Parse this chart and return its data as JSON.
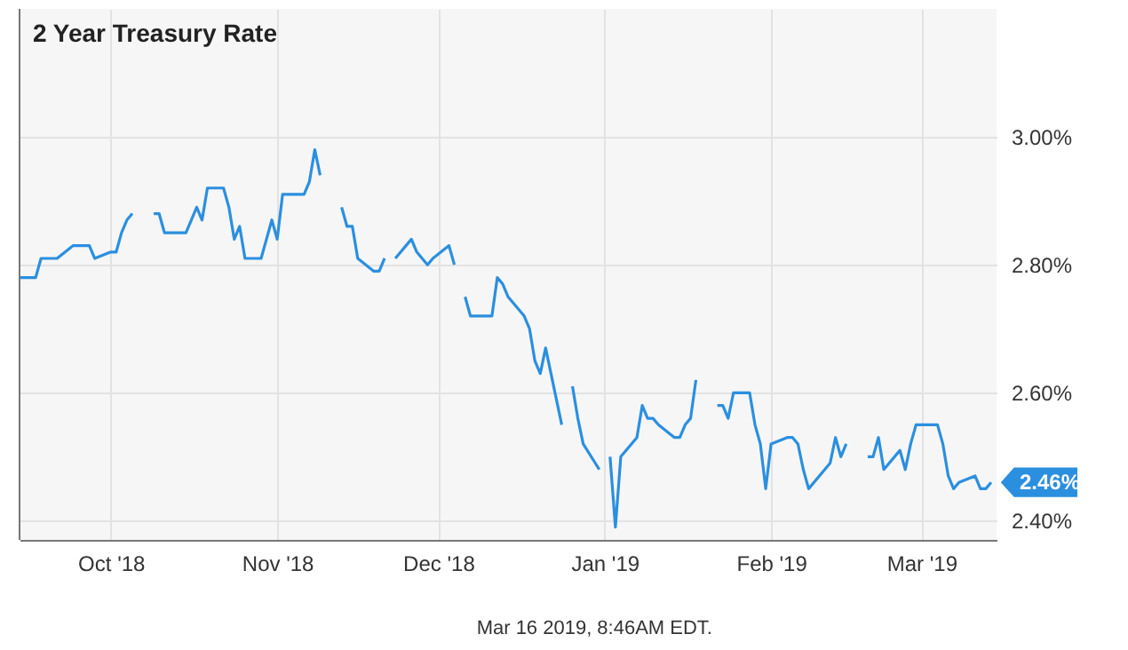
{
  "chart_data": {
    "type": "line",
    "title": "2 Year Treasury Rate",
    "x": [
      "2018-09-14",
      "2018-09-17",
      "2018-09-18",
      "2018-09-19",
      "2018-09-20",
      "2018-09-21",
      "2018-09-24",
      "2018-09-25",
      "2018-09-26",
      "2018-09-27",
      "2018-09-28",
      "2018-10-01",
      "2018-10-02",
      "2018-10-03",
      "2018-10-04",
      "2018-10-05",
      "2018-10-08",
      "2018-10-09",
      "2018-10-10",
      "2018-10-11",
      "2018-10-12",
      "2018-10-15",
      "2018-10-16",
      "2018-10-17",
      "2018-10-18",
      "2018-10-19",
      "2018-10-22",
      "2018-10-23",
      "2018-10-24",
      "2018-10-25",
      "2018-10-26",
      "2018-10-29",
      "2018-10-30",
      "2018-10-31",
      "2018-11-01",
      "2018-11-02",
      "2018-11-05",
      "2018-11-06",
      "2018-11-07",
      "2018-11-08",
      "2018-11-09",
      "2018-11-12",
      "2018-11-13",
      "2018-11-14",
      "2018-11-15",
      "2018-11-16",
      "2018-11-19",
      "2018-11-20",
      "2018-11-21",
      "2018-11-22",
      "2018-11-23",
      "2018-11-26",
      "2018-11-27",
      "2018-11-28",
      "2018-11-29",
      "2018-11-30",
      "2018-12-03",
      "2018-12-04",
      "2018-12-05",
      "2018-12-06",
      "2018-12-07",
      "2018-12-10",
      "2018-12-11",
      "2018-12-12",
      "2018-12-13",
      "2018-12-14",
      "2018-12-17",
      "2018-12-18",
      "2018-12-19",
      "2018-12-20",
      "2018-12-21",
      "2018-12-24",
      "2018-12-25",
      "2018-12-26",
      "2018-12-27",
      "2018-12-28",
      "2018-12-31",
      "2019-01-01",
      "2019-01-02",
      "2019-01-03",
      "2019-01-04",
      "2019-01-07",
      "2019-01-08",
      "2019-01-09",
      "2019-01-10",
      "2019-01-11",
      "2019-01-14",
      "2019-01-15",
      "2019-01-16",
      "2019-01-17",
      "2019-01-18",
      "2019-01-21",
      "2019-01-22",
      "2019-01-23",
      "2019-01-24",
      "2019-01-25",
      "2019-01-28",
      "2019-01-29",
      "2019-01-30",
      "2019-01-31",
      "2019-02-01",
      "2019-02-04",
      "2019-02-05",
      "2019-02-06",
      "2019-02-07",
      "2019-02-08",
      "2019-02-11",
      "2019-02-12",
      "2019-02-13",
      "2019-02-14",
      "2019-02-15",
      "2019-02-18",
      "2019-02-19",
      "2019-02-20",
      "2019-02-21",
      "2019-02-22",
      "2019-02-25",
      "2019-02-26",
      "2019-02-27",
      "2019-02-28",
      "2019-03-01",
      "2019-03-04",
      "2019-03-05",
      "2019-03-06",
      "2019-03-07",
      "2019-03-08",
      "2019-03-11",
      "2019-03-12",
      "2019-03-13",
      "2019-03-14"
    ],
    "series": [
      {
        "color": "#2b8fe0",
        "values": [
          2.78,
          2.78,
          2.81,
          2.81,
          2.81,
          2.81,
          2.83,
          2.83,
          2.83,
          2.83,
          2.81,
          2.82,
          2.82,
          2.85,
          2.87,
          2.88,
          null,
          2.88,
          2.88,
          2.85,
          2.85,
          2.85,
          2.87,
          2.89,
          2.87,
          2.92,
          2.92,
          2.89,
          2.84,
          2.86,
          2.81,
          2.81,
          2.84,
          2.87,
          2.84,
          2.91,
          2.91,
          2.91,
          2.93,
          2.98,
          2.94,
          null,
          2.89,
          2.86,
          2.86,
          2.81,
          2.79,
          2.79,
          2.81,
          null,
          2.81,
          2.84,
          2.82,
          2.81,
          2.8,
          2.81,
          2.83,
          2.8,
          null,
          2.75,
          2.72,
          2.72,
          2.72,
          2.78,
          2.77,
          2.75,
          2.72,
          2.7,
          2.65,
          2.63,
          2.67,
          2.55,
          null,
          2.61,
          2.56,
          2.52,
          2.48,
          null,
          2.5,
          2.39,
          2.5,
          2.53,
          2.58,
          2.56,
          2.56,
          2.55,
          2.53,
          2.53,
          2.55,
          2.56,
          2.62,
          null,
          2.58,
          2.58,
          2.56,
          2.6,
          2.6,
          2.55,
          2.52,
          2.45,
          2.52,
          2.53,
          2.53,
          2.52,
          2.48,
          2.45,
          2.48,
          2.49,
          2.53,
          2.5,
          2.52,
          null,
          2.5,
          2.5,
          2.53,
          2.48,
          2.51,
          2.48,
          2.52,
          2.55,
          2.55,
          2.55,
          2.52,
          2.47,
          2.45,
          2.46,
          2.47,
          2.45,
          2.45,
          2.46
        ]
      }
    ],
    "xlim": [
      "2018-09-14",
      "2019-03-15"
    ],
    "xticks": [
      {
        "value": "2018-10-01",
        "label": "Oct '18"
      },
      {
        "value": "2018-11-01",
        "label": "Nov '18"
      },
      {
        "value": "2018-12-01",
        "label": "Dec '18"
      },
      {
        "value": "2019-01-01",
        "label": "Jan '19"
      },
      {
        "value": "2019-02-01",
        "label": "Feb '19"
      },
      {
        "value": "2019-03-01",
        "label": "Mar '19"
      }
    ],
    "ylim": [
      2.37,
      3.2
    ],
    "yticks": [
      {
        "value": 2.4,
        "label": "2.40%"
      },
      {
        "value": 2.6,
        "label": "2.60%"
      },
      {
        "value": 2.8,
        "label": "2.80%"
      },
      {
        "value": 3.0,
        "label": "3.00%"
      }
    ],
    "grid": true,
    "marker": "none",
    "line_style": "solid",
    "annotations": [
      {
        "text": "2.46%",
        "x": "2019-03-14",
        "y": 2.46
      },
      "Mar 16 2019, 8:46AM EDT."
    ]
  }
}
